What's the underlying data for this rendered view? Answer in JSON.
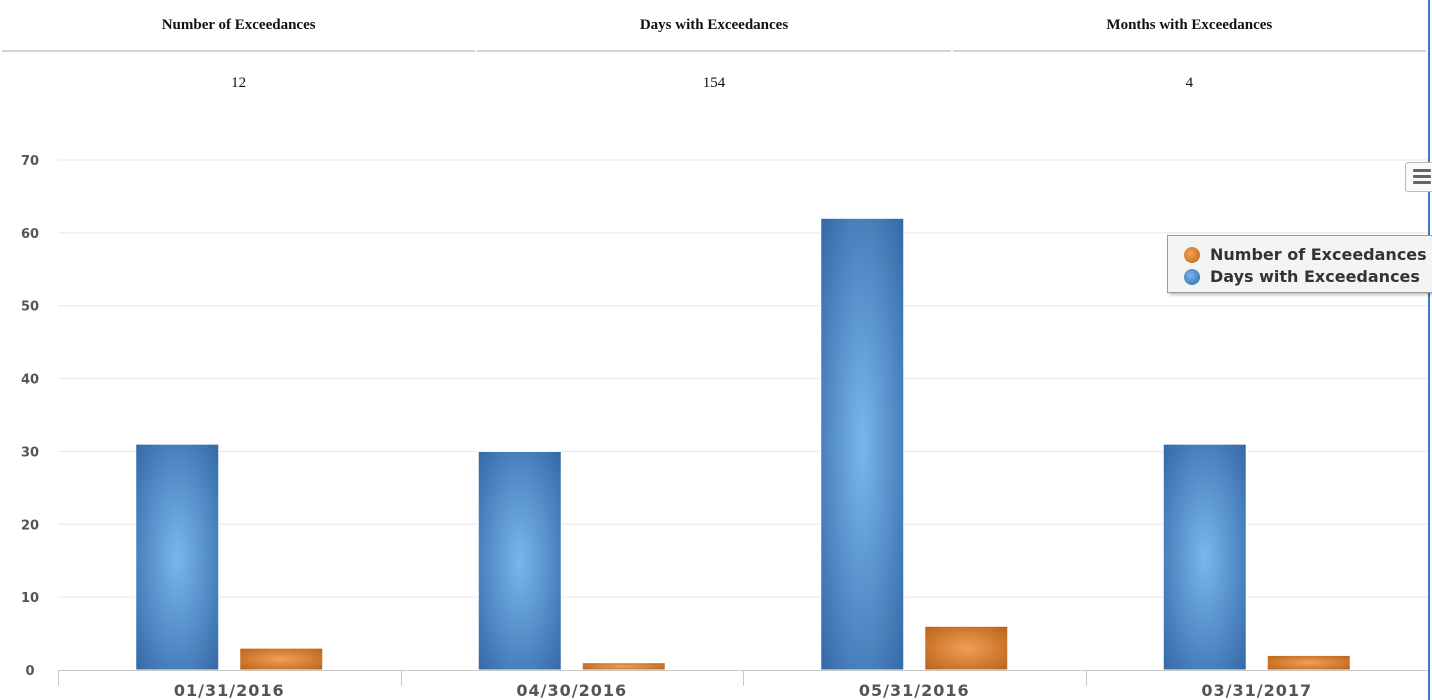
{
  "summary": {
    "headers": [
      "Number of Exceedances",
      "Days with Exceedances",
      "Months with Exceedances"
    ],
    "values": [
      "12",
      "154",
      "4"
    ]
  },
  "chart_data": {
    "type": "bar",
    "categories": [
      "01/31/2016",
      "04/30/2016",
      "05/31/2016",
      "03/31/2017"
    ],
    "series": [
      {
        "name": "Days with Exceedances",
        "values": [
          31,
          30,
          62,
          31
        ],
        "color": "#3f7ec0"
      },
      {
        "name": "Number of Exceedances",
        "values": [
          3,
          1,
          6,
          2
        ],
        "color": "#d5741f"
      }
    ],
    "ylim": [
      0,
      70
    ],
    "yticks": [
      0,
      10,
      20,
      30,
      40,
      50,
      60,
      70
    ],
    "grid": true,
    "legend_placement": "right",
    "legend_order": [
      "Number of Exceedances",
      "Days with Exceedances"
    ]
  },
  "toolbar": {
    "menu_icon": "hamburger-menu-icon"
  }
}
